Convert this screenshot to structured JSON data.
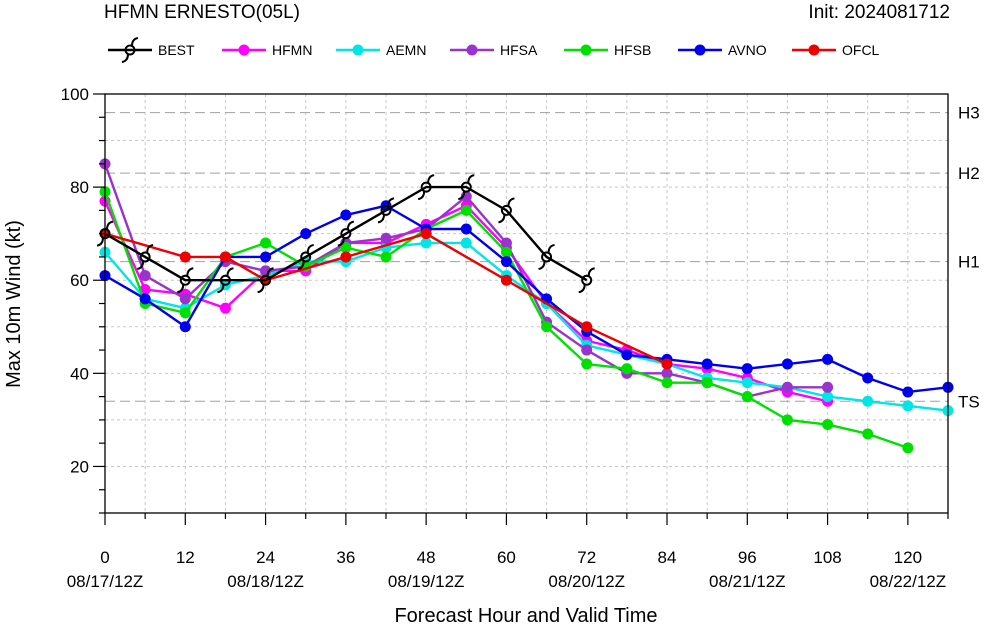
{
  "header": {
    "title": "HFMN ERNESTO(05L)",
    "init": "Init: 2024081712"
  },
  "chart_data": {
    "type": "line",
    "xlabel": "Forecast Hour and Valid Time",
    "ylabel": "Max 10m Wind (kt)",
    "xlim": [
      0,
      126
    ],
    "ylim": [
      10,
      100
    ],
    "x_ticks": [
      0,
      12,
      24,
      36,
      48,
      60,
      72,
      84,
      96,
      108,
      120
    ],
    "x_minor_step": 6,
    "y_ticks": [
      20,
      40,
      60,
      80,
      100
    ],
    "y_minor_step": 5,
    "date_labels": [
      {
        "x": 0,
        "label": "08/17/12Z"
      },
      {
        "x": 24,
        "label": "08/18/12Z"
      },
      {
        "x": 48,
        "label": "08/19/12Z"
      },
      {
        "x": 72,
        "label": "08/20/12Z"
      },
      {
        "x": 96,
        "label": "08/21/12Z"
      },
      {
        "x": 120,
        "label": "08/22/12Z"
      }
    ],
    "grid": true,
    "legend_position": "top",
    "thresholds": [
      {
        "label": "TS",
        "value": 34
      },
      {
        "label": "H1",
        "value": 64
      },
      {
        "label": "H2",
        "value": 83
      },
      {
        "label": "H3",
        "value": 96
      }
    ],
    "series": [
      {
        "name": "HFMN",
        "color": "#ff00ff",
        "marker": "circle",
        "x": [
          0,
          6,
          12,
          18,
          24,
          30,
          36,
          42,
          48,
          54,
          60,
          66,
          72,
          78,
          84,
          90,
          96,
          102,
          108
        ],
        "y": [
          77,
          58,
          57,
          54,
          62,
          62,
          68,
          68,
          72,
          76,
          67,
          55,
          47,
          45,
          42,
          41,
          39,
          36,
          34
        ]
      },
      {
        "name": "AEMN",
        "color": "#00e5e5",
        "marker": "circle",
        "x": [
          0,
          6,
          12,
          18,
          24,
          30,
          36,
          42,
          48,
          54,
          60,
          66,
          72,
          78,
          84,
          90,
          96,
          102,
          108,
          114,
          120,
          126
        ],
        "y": [
          66,
          56,
          54,
          59,
          61,
          64,
          64,
          67,
          68,
          68,
          61,
          55,
          46,
          44,
          42,
          39,
          38,
          37,
          35,
          34,
          33,
          32
        ]
      },
      {
        "name": "HFSA",
        "color": "#9a32cd",
        "marker": "circle",
        "x": [
          0,
          6,
          12,
          18,
          24,
          30,
          36,
          42,
          48,
          54,
          60,
          66,
          72,
          78,
          84,
          90,
          96,
          102,
          108
        ],
        "y": [
          85,
          61,
          56,
          64,
          62,
          63,
          68,
          69,
          71,
          78,
          68,
          51,
          45,
          40,
          40,
          38,
          35,
          37,
          37
        ]
      },
      {
        "name": "HFSB",
        "color": "#00e000",
        "marker": "circle",
        "x": [
          0,
          6,
          12,
          18,
          24,
          30,
          36,
          42,
          48,
          54,
          60,
          66,
          72,
          78,
          84,
          90,
          96,
          102,
          108,
          114,
          120
        ],
        "y": [
          79,
          55,
          53,
          65,
          68,
          63,
          67,
          65,
          71,
          75,
          66,
          50,
          42,
          41,
          38,
          38,
          35,
          30,
          29,
          27,
          24
        ]
      },
      {
        "name": "AVNO",
        "color": "#0000ee",
        "marker": "circle",
        "x": [
          0,
          6,
          12,
          18,
          24,
          30,
          36,
          42,
          48,
          54,
          60,
          66,
          72,
          78,
          84,
          90,
          96,
          102,
          108,
          114,
          120,
          126
        ],
        "y": [
          61,
          56,
          50,
          65,
          65,
          70,
          74,
          76,
          71,
          71,
          64,
          56,
          49,
          44,
          43,
          42,
          41,
          42,
          43,
          39,
          36,
          37
        ]
      },
      {
        "name": "OFCL",
        "color": "#ee0000",
        "marker": "circle",
        "x": [
          0,
          12,
          18,
          24,
          36,
          48,
          60,
          72,
          84
        ],
        "y": [
          70,
          65,
          65,
          60,
          65,
          70,
          60,
          50,
          42
        ]
      },
      {
        "name": "BEST",
        "color": "#000000",
        "marker": "hurricane",
        "x": [
          0,
          6,
          12,
          18,
          24,
          30,
          36,
          42,
          48,
          54,
          60,
          66,
          72
        ],
        "y": [
          70,
          65,
          60,
          60,
          60,
          65,
          70,
          75,
          80,
          80,
          75,
          65,
          60
        ]
      }
    ],
    "legend": [
      {
        "name": "BEST",
        "color": "#000000",
        "marker": "hurricane"
      },
      {
        "name": "HFMN",
        "color": "#ff00ff",
        "marker": "circle"
      },
      {
        "name": "AEMN",
        "color": "#00e5e5",
        "marker": "circle"
      },
      {
        "name": "HFSA",
        "color": "#9a32cd",
        "marker": "circle"
      },
      {
        "name": "HFSB",
        "color": "#00e000",
        "marker": "circle"
      },
      {
        "name": "AVNO",
        "color": "#0000ee",
        "marker": "circle"
      },
      {
        "name": "OFCL",
        "color": "#ee0000",
        "marker": "circle"
      }
    ]
  }
}
